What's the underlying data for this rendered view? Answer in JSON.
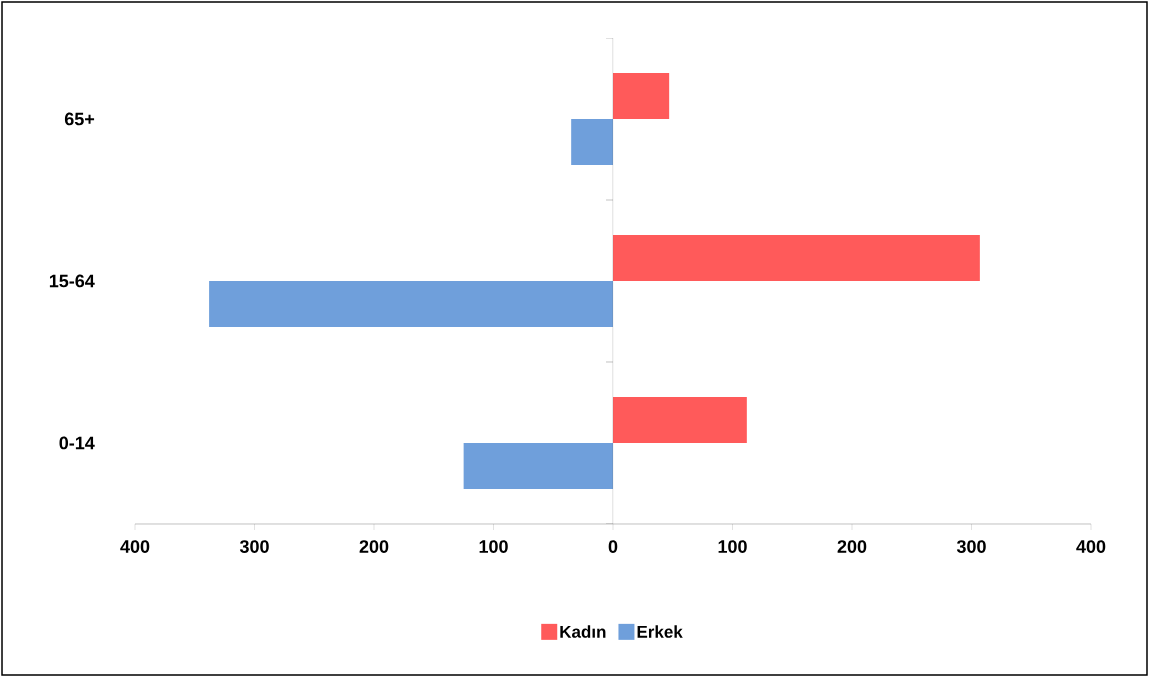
{
  "chart_data": {
    "type": "bar",
    "orientation": "horizontal",
    "categories": [
      "65+",
      "15-64",
      "0-14"
    ],
    "series": [
      {
        "name": "Kadın",
        "color": "#ff5a5a",
        "values": [
          47,
          307,
          112
        ]
      },
      {
        "name": "Erkek",
        "color": "#6f9fdb",
        "values": [
          -35,
          -338,
          -125
        ]
      }
    ],
    "xlim": [
      -400,
      400
    ],
    "xticks": [
      {
        "value": -400,
        "label": "400"
      },
      {
        "value": -300,
        "label": "300"
      },
      {
        "value": -200,
        "label": "200"
      },
      {
        "value": -100,
        "label": "100"
      },
      0,
      100,
      200,
      300,
      400
    ],
    "legend": "bottom"
  }
}
